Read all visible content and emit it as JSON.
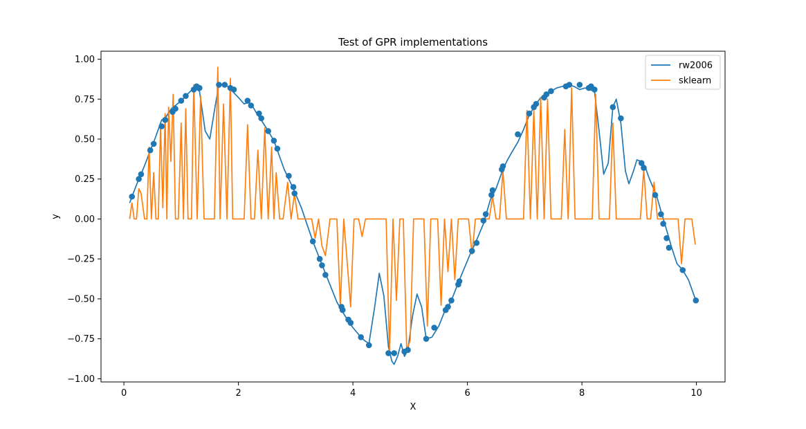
{
  "chart_data": {
    "type": "line",
    "title": "Test of GPR implementations",
    "xlabel": "X",
    "ylabel": "y",
    "xlim": [
      -0.4,
      10.5
    ],
    "ylim": [
      -1.02,
      1.05
    ],
    "xticks": [
      0,
      2,
      4,
      6,
      8,
      10
    ],
    "xtick_labels": [
      "0",
      "2",
      "4",
      "6",
      "8",
      "10"
    ],
    "yticks": [
      -1.0,
      -0.75,
      -0.5,
      -0.25,
      0.0,
      0.25,
      0.5,
      0.75,
      1.0
    ],
    "ytick_labels": [
      "−1.00",
      "−0.75",
      "−0.50",
      "−0.25",
      "0.00",
      "0.25",
      "0.50",
      "0.75",
      "1.00"
    ],
    "grid": false,
    "legend_position": "upper right",
    "series": [
      {
        "name": "rw2006",
        "color": "#1f77b4",
        "x": [
          0.1,
          0.14,
          0.26,
          0.3,
          0.4,
          0.46,
          0.52,
          0.62,
          0.66,
          0.72,
          0.79,
          0.85,
          0.9,
          1.0,
          1.08,
          1.22,
          1.32,
          1.42,
          1.5,
          1.6,
          1.66,
          1.76,
          1.86,
          1.92,
          2.0,
          2.1,
          2.18,
          2.24,
          2.32,
          2.38,
          2.52,
          2.62,
          2.68,
          2.8,
          2.88,
          2.96,
          3.1,
          3.3,
          3.42,
          3.52,
          3.62,
          3.72,
          3.8,
          3.92,
          4.0,
          4.14,
          4.2,
          4.28,
          4.38,
          4.46,
          4.54,
          4.62,
          4.68,
          4.72,
          4.78,
          4.84,
          4.9,
          4.96,
          5.04,
          5.12,
          5.2,
          5.28,
          5.38,
          5.5,
          5.6,
          5.66,
          5.72,
          5.84,
          5.92,
          6.06,
          6.14,
          6.28,
          6.4,
          6.5,
          6.56,
          6.62,
          6.7,
          6.78,
          6.88,
          6.98,
          7.08,
          7.18,
          7.28,
          7.34,
          7.4,
          7.46,
          7.56,
          7.66,
          7.74,
          7.86,
          7.96,
          8.06,
          8.12,
          8.22,
          8.3,
          8.38,
          8.46,
          8.54,
          8.6,
          8.68,
          8.76,
          8.82,
          8.9,
          8.96,
          9.04,
          9.1,
          9.18,
          9.3,
          9.38,
          9.48,
          9.56,
          9.66,
          9.76,
          9.86,
          9.96,
          10.0
        ],
        "y": [
          0.1,
          0.14,
          0.25,
          0.28,
          0.37,
          0.43,
          0.48,
          0.58,
          0.62,
          0.63,
          0.67,
          0.7,
          0.71,
          0.74,
          0.77,
          0.82,
          0.8,
          0.55,
          0.5,
          0.72,
          0.84,
          0.84,
          0.82,
          0.79,
          0.76,
          0.72,
          0.73,
          0.71,
          0.66,
          0.63,
          0.55,
          0.49,
          0.43,
          0.31,
          0.25,
          0.19,
          0.07,
          -0.14,
          -0.25,
          -0.34,
          -0.43,
          -0.52,
          -0.57,
          -0.64,
          -0.68,
          -0.74,
          -0.76,
          -0.78,
          -0.55,
          -0.34,
          -0.48,
          -0.8,
          -0.89,
          -0.91,
          -0.86,
          -0.78,
          -0.86,
          -0.82,
          -0.61,
          -0.47,
          -0.55,
          -0.75,
          -0.74,
          -0.67,
          -0.58,
          -0.55,
          -0.51,
          -0.4,
          -0.33,
          -0.21,
          -0.15,
          -0.03,
          0.12,
          0.19,
          0.25,
          0.31,
          0.37,
          0.42,
          0.48,
          0.56,
          0.65,
          0.71,
          0.76,
          0.77,
          0.78,
          0.8,
          0.82,
          0.83,
          0.84,
          0.83,
          0.81,
          0.82,
          0.81,
          0.8,
          0.55,
          0.28,
          0.35,
          0.7,
          0.75,
          0.6,
          0.3,
          0.22,
          0.3,
          0.37,
          0.36,
          0.33,
          0.25,
          0.15,
          0.05,
          -0.07,
          -0.17,
          -0.28,
          -0.32,
          -0.38,
          -0.48,
          -0.52
        ]
      },
      {
        "name": "sklearn",
        "color": "#ff7f0e",
        "x": [
          0.1,
          0.14,
          0.18,
          0.22,
          0.26,
          0.3,
          0.36,
          0.4,
          0.44,
          0.48,
          0.52,
          0.56,
          0.6,
          0.64,
          0.68,
          0.72,
          0.75,
          0.78,
          0.82,
          0.86,
          0.9,
          0.95,
          1.0,
          1.04,
          1.08,
          1.12,
          1.18,
          1.22,
          1.28,
          1.34,
          1.4,
          1.46,
          1.52,
          1.58,
          1.64,
          1.68,
          1.74,
          1.8,
          1.86,
          1.9,
          1.94,
          2.0,
          2.06,
          2.1,
          2.16,
          2.22,
          2.28,
          2.34,
          2.4,
          2.46,
          2.52,
          2.58,
          2.62,
          2.66,
          2.72,
          2.78,
          2.86,
          2.92,
          2.98,
          3.04,
          3.1,
          3.16,
          3.22,
          3.28,
          3.34,
          3.4,
          3.46,
          3.52,
          3.6,
          3.66,
          3.72,
          3.78,
          3.84,
          3.9,
          3.96,
          4.02,
          4.1,
          4.16,
          4.22,
          4.28,
          4.34,
          4.4,
          4.46,
          4.52,
          4.58,
          4.64,
          4.7,
          4.76,
          4.82,
          4.88,
          4.94,
          5.0,
          5.06,
          5.12,
          5.18,
          5.24,
          5.3,
          5.36,
          5.42,
          5.48,
          5.54,
          5.6,
          5.66,
          5.72,
          5.78,
          5.84,
          5.9,
          5.96,
          6.02,
          6.08,
          6.14,
          6.2,
          6.26,
          6.32,
          6.38,
          6.44,
          6.5,
          6.56,
          6.62,
          6.68,
          6.74,
          6.8,
          6.86,
          6.92,
          6.98,
          7.04,
          7.1,
          7.16,
          7.22,
          7.28,
          7.34,
          7.4,
          7.46,
          7.52,
          7.58,
          7.64,
          7.7,
          7.76,
          7.82,
          7.88,
          7.94,
          8.0,
          8.06,
          8.12,
          8.18,
          8.24,
          8.3,
          8.36,
          8.42,
          8.48,
          8.54,
          8.6,
          8.66,
          8.72,
          8.78,
          8.84,
          8.9,
          8.96,
          9.02,
          9.08,
          9.14,
          9.2,
          9.26,
          9.32,
          9.38,
          9.44,
          9.5,
          9.56,
          9.62,
          9.68,
          9.74,
          9.8,
          9.86,
          9.92,
          9.98
        ],
        "y": [
          0.0,
          0.1,
          0.0,
          0.0,
          0.19,
          0.16,
          0.0,
          0.0,
          0.45,
          0.0,
          0.29,
          0.0,
          0.0,
          0.58,
          0.07,
          0.66,
          0.0,
          0.7,
          0.36,
          0.78,
          0.0,
          0.0,
          0.6,
          0.0,
          0.69,
          0.0,
          0.0,
          0.84,
          0.0,
          0.77,
          0.0,
          0.0,
          0.0,
          0.0,
          0.95,
          0.0,
          0.72,
          0.0,
          0.88,
          0.0,
          0.0,
          0.0,
          0.0,
          0.0,
          0.59,
          0.0,
          0.0,
          0.43,
          0.0,
          0.57,
          0.0,
          0.45,
          0.0,
          0.29,
          0.0,
          0.0,
          0.23,
          0.0,
          0.16,
          0.0,
          0.0,
          0.0,
          0.0,
          0.0,
          -0.12,
          0.0,
          -0.17,
          -0.23,
          0.0,
          0.0,
          0.0,
          -0.55,
          0.0,
          -0.27,
          -0.55,
          0.0,
          0.0,
          -0.11,
          0.0,
          0.0,
          0.0,
          0.0,
          0.0,
          0.0,
          0.0,
          -0.84,
          0.0,
          -0.51,
          0.0,
          0.0,
          -0.82,
          -0.76,
          0.0,
          0.0,
          0.0,
          0.0,
          -0.67,
          0.0,
          0.0,
          0.0,
          -0.54,
          0.0,
          -0.33,
          0.0,
          -0.38,
          0.0,
          0.0,
          0.0,
          0.0,
          -0.22,
          0.0,
          0.0,
          0.0,
          0.0,
          0.0,
          0.14,
          0.0,
          0.0,
          0.3,
          0.0,
          0.0,
          0.0,
          0.0,
          0.0,
          0.0,
          0.68,
          0.0,
          0.68,
          0.0,
          0.76,
          0.0,
          0.75,
          0.0,
          0.0,
          0.0,
          0.0,
          0.56,
          0.0,
          0.82,
          0.0,
          0.0,
          0.0,
          0.0,
          0.0,
          0.0,
          0.78,
          0.0,
          0.0,
          0.0,
          0.0,
          0.6,
          0.0,
          0.0,
          0.0,
          0.0,
          0.0,
          0.0,
          0.0,
          0.0,
          0.31,
          0.0,
          0.0,
          0.23,
          0.0,
          0.0,
          0.0,
          0.0,
          0.0,
          0.0,
          0.0,
          -0.28,
          0.0,
          0.0,
          0.0,
          -0.16
        ]
      }
    ],
    "points": {
      "series": "rw2006",
      "color": "#1f77b4",
      "x": [
        0.14,
        0.26,
        0.3,
        0.46,
        0.52,
        0.66,
        0.72,
        0.85,
        0.9,
        1.0,
        1.08,
        1.22,
        1.27,
        1.32,
        1.66,
        1.76,
        1.86,
        1.92,
        2.16,
        2.22,
        2.36,
        2.4,
        2.52,
        2.62,
        2.68,
        2.88,
        2.96,
        2.98,
        3.3,
        3.42,
        3.46,
        3.52,
        3.8,
        3.82,
        3.92,
        3.96,
        4.14,
        4.28,
        4.62,
        4.72,
        4.9,
        4.96,
        5.28,
        5.42,
        5.62,
        5.66,
        5.72,
        5.84,
        5.86,
        6.08,
        6.16,
        6.28,
        6.32,
        6.42,
        6.44,
        6.6,
        6.62,
        6.88,
        7.08,
        7.16,
        7.2,
        7.34,
        7.38,
        7.46,
        7.72,
        7.78,
        7.96,
        8.12,
        8.16,
        8.22,
        8.54,
        8.68,
        9.04,
        9.08,
        9.28,
        9.38,
        9.42,
        9.48,
        9.52,
        9.76,
        9.99
      ],
      "y": [
        0.14,
        0.25,
        0.28,
        0.43,
        0.47,
        0.58,
        0.62,
        0.67,
        0.69,
        0.74,
        0.77,
        0.81,
        0.83,
        0.82,
        0.84,
        0.84,
        0.82,
        0.81,
        0.74,
        0.71,
        0.66,
        0.63,
        0.55,
        0.49,
        0.44,
        0.27,
        0.2,
        0.16,
        -0.14,
        -0.25,
        -0.29,
        -0.35,
        -0.55,
        -0.57,
        -0.63,
        -0.65,
        -0.74,
        -0.79,
        -0.84,
        -0.84,
        -0.83,
        -0.82,
        -0.75,
        -0.68,
        -0.57,
        -0.55,
        -0.51,
        -0.41,
        -0.39,
        -0.2,
        -0.15,
        -0.01,
        0.03,
        0.15,
        0.18,
        0.31,
        0.33,
        0.53,
        0.66,
        0.7,
        0.72,
        0.76,
        0.78,
        0.8,
        0.83,
        0.84,
        0.84,
        0.82,
        0.83,
        0.81,
        0.7,
        0.63,
        0.35,
        0.32,
        0.15,
        0.03,
        -0.03,
        -0.12,
        -0.18,
        -0.32,
        -0.51
      ]
    }
  }
}
